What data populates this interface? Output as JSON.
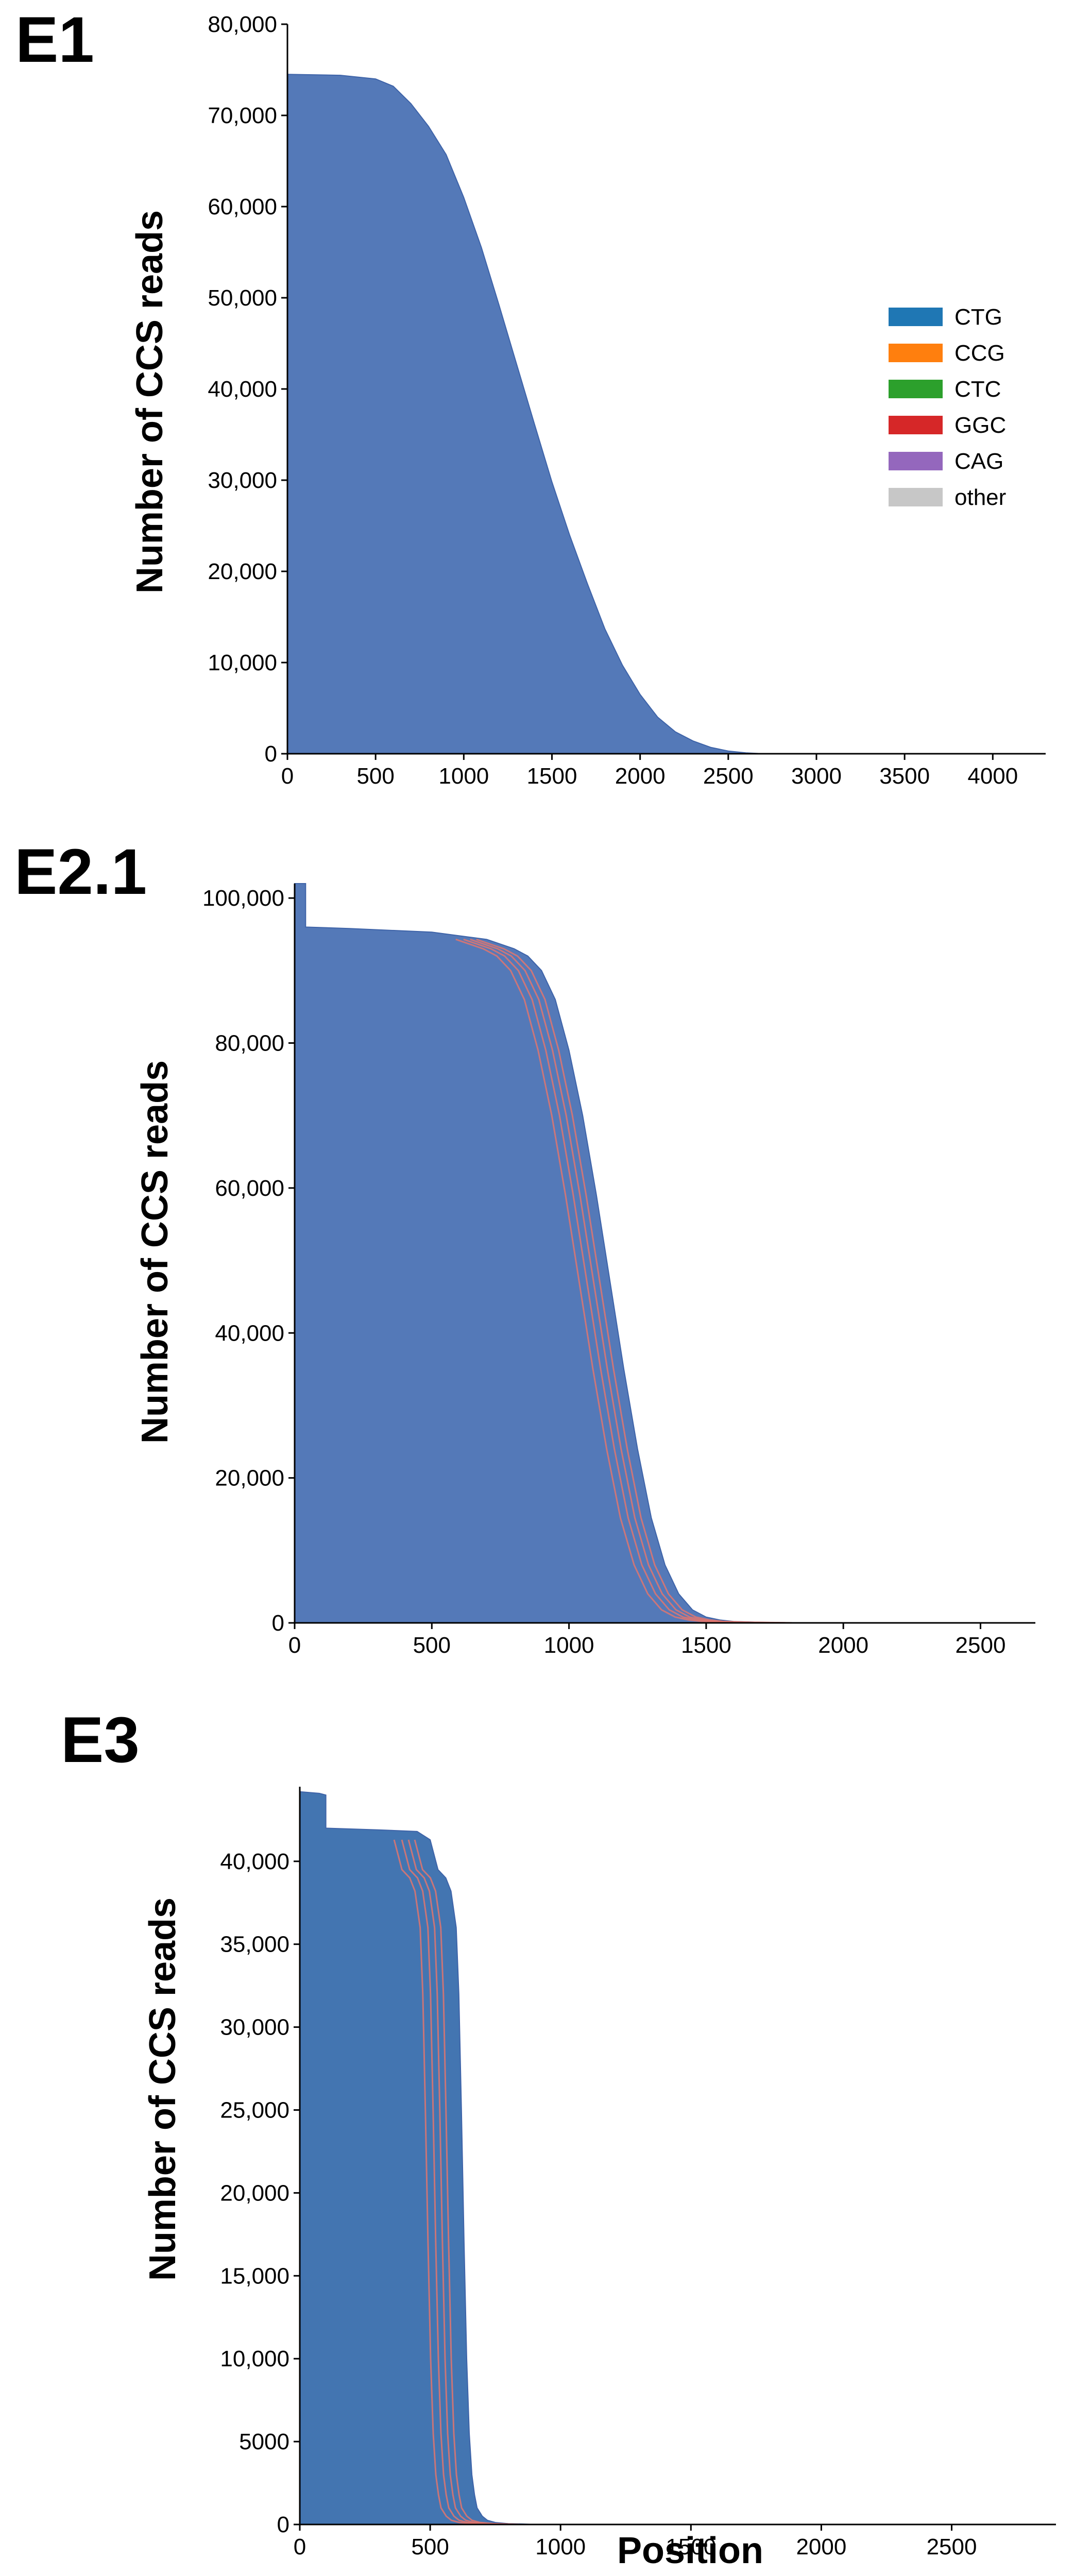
{
  "colors": {
    "CTG": "#1f77b4",
    "CCG": "#ff7f0e",
    "CTC": "#2ca02c",
    "GGC": "#d62728",
    "CAG": "#9467bd",
    "other": "#c7c7c7",
    "area_fill": "#5479b8",
    "area_fill_e3": "#4375b1",
    "stripe": "#e0766f"
  },
  "chart_data": [
    {
      "id": "E1",
      "type": "area",
      "panel_label": "E1",
      "title": "",
      "xlabel": "",
      "ylabel": "Number of CCS reads",
      "xlim": [
        0,
        4300
      ],
      "ylim": [
        0,
        80000
      ],
      "xticks": [
        0,
        500,
        1000,
        1500,
        2000,
        2500,
        3000,
        3500,
        4000
      ],
      "xtick_labels": [
        "0",
        "500",
        "1000",
        "1500",
        "2000",
        "2500",
        "3000",
        "3500",
        "4000"
      ],
      "yticks": [
        0,
        10000,
        20000,
        30000,
        40000,
        50000,
        60000,
        70000,
        80000
      ],
      "ytick_labels": [
        "0",
        "10,000",
        "20,000",
        "30,000",
        "40,000",
        "50,000",
        "60,000",
        "70,000",
        "80,000"
      ],
      "legend": {
        "placement": "right",
        "entries": [
          "CTG",
          "CCG",
          "CTC",
          "GGC",
          "CAG",
          "other"
        ]
      },
      "series": [
        {
          "name": "CTG",
          "x": [
            0,
            300,
            500,
            600,
            700,
            800,
            900,
            1000,
            1100,
            1200,
            1300,
            1400,
            1500,
            1600,
            1700,
            1800,
            1900,
            2000,
            2100,
            2200,
            2300,
            2400,
            2500,
            2600,
            2700,
            2800,
            4300
          ],
          "values": [
            74500,
            74400,
            74000,
            73200,
            71300,
            68800,
            65700,
            61000,
            55500,
            49200,
            42700,
            36200,
            29800,
            24000,
            18700,
            13700,
            9700,
            6500,
            4000,
            2400,
            1400,
            700,
            300,
            100,
            0,
            0,
            0
          ]
        }
      ],
      "stripes": []
    },
    {
      "id": "E2.1",
      "type": "area",
      "panel_label": "E2.1",
      "title": "",
      "xlabel": "",
      "ylabel": "Number of CCS reads",
      "xlim": [
        0,
        2700
      ],
      "ylim": [
        0,
        102000
      ],
      "xticks": [
        0,
        500,
        1000,
        1500,
        2000,
        2500
      ],
      "xtick_labels": [
        "0",
        "500",
        "1000",
        "1500",
        "2000",
        "2500"
      ],
      "yticks": [
        0,
        20000,
        40000,
        60000,
        80000,
        100000
      ],
      "ytick_labels": [
        "0",
        "20,000",
        "40,000",
        "60,000",
        "80,000",
        "100,000"
      ],
      "legend": null,
      "series": [
        {
          "name": "CTG",
          "x": [
            0,
            40,
            40,
            200,
            500,
            700,
            800,
            850,
            900,
            950,
            1000,
            1050,
            1100,
            1150,
            1200,
            1250,
            1300,
            1350,
            1400,
            1450,
            1500,
            1550,
            1600,
            1700,
            1850,
            2000,
            2700
          ],
          "values": [
            102000,
            102000,
            96000,
            95800,
            95300,
            94300,
            93000,
            92000,
            90000,
            86000,
            79000,
            70000,
            59000,
            47000,
            35000,
            24000,
            14500,
            8000,
            4000,
            1800,
            800,
            400,
            200,
            80,
            10,
            0,
            0
          ]
        }
      ],
      "stripes": [
        {
          "name": "CCG",
          "offsets": [
            -60,
            -45,
            -32,
            -20
          ]
        }
      ]
    },
    {
      "id": "E3",
      "type": "area",
      "panel_label": "E3",
      "title": "",
      "xlabel": "Position",
      "ylabel": "Number of CCS reads",
      "xlim": [
        0,
        2900
      ],
      "ylim": [
        0,
        44500
      ],
      "xticks": [
        0,
        500,
        1000,
        1500,
        2000,
        2500
      ],
      "xtick_labels": [
        "0",
        "500",
        "1000",
        "1500",
        "2000",
        "2500"
      ],
      "yticks": [
        0,
        5000,
        10000,
        15000,
        20000,
        25000,
        30000,
        35000,
        40000
      ],
      "ytick_labels": [
        "0",
        "5000",
        "10,000",
        "15,000",
        "20,000",
        "25,000",
        "30,000",
        "35,000",
        "40,000"
      ],
      "legend": null,
      "series": [
        {
          "name": "CTG",
          "x": [
            0,
            75,
            100,
            100,
            300,
            450,
            500,
            530,
            560,
            580,
            600,
            610,
            620,
            630,
            640,
            650,
            660,
            670,
            680,
            700,
            720,
            750,
            800,
            900,
            1000,
            2900
          ],
          "values": [
            44200,
            44100,
            44000,
            42000,
            41900,
            41800,
            41300,
            39500,
            39000,
            38200,
            36000,
            32000,
            25000,
            17000,
            10000,
            5500,
            3000,
            1800,
            1000,
            500,
            250,
            120,
            50,
            10,
            0,
            0
          ]
        }
      ],
      "stripes": [
        {
          "name": "CCG",
          "offsets": [
            -70,
            -55,
            -42,
            -30
          ]
        }
      ]
    }
  ]
}
